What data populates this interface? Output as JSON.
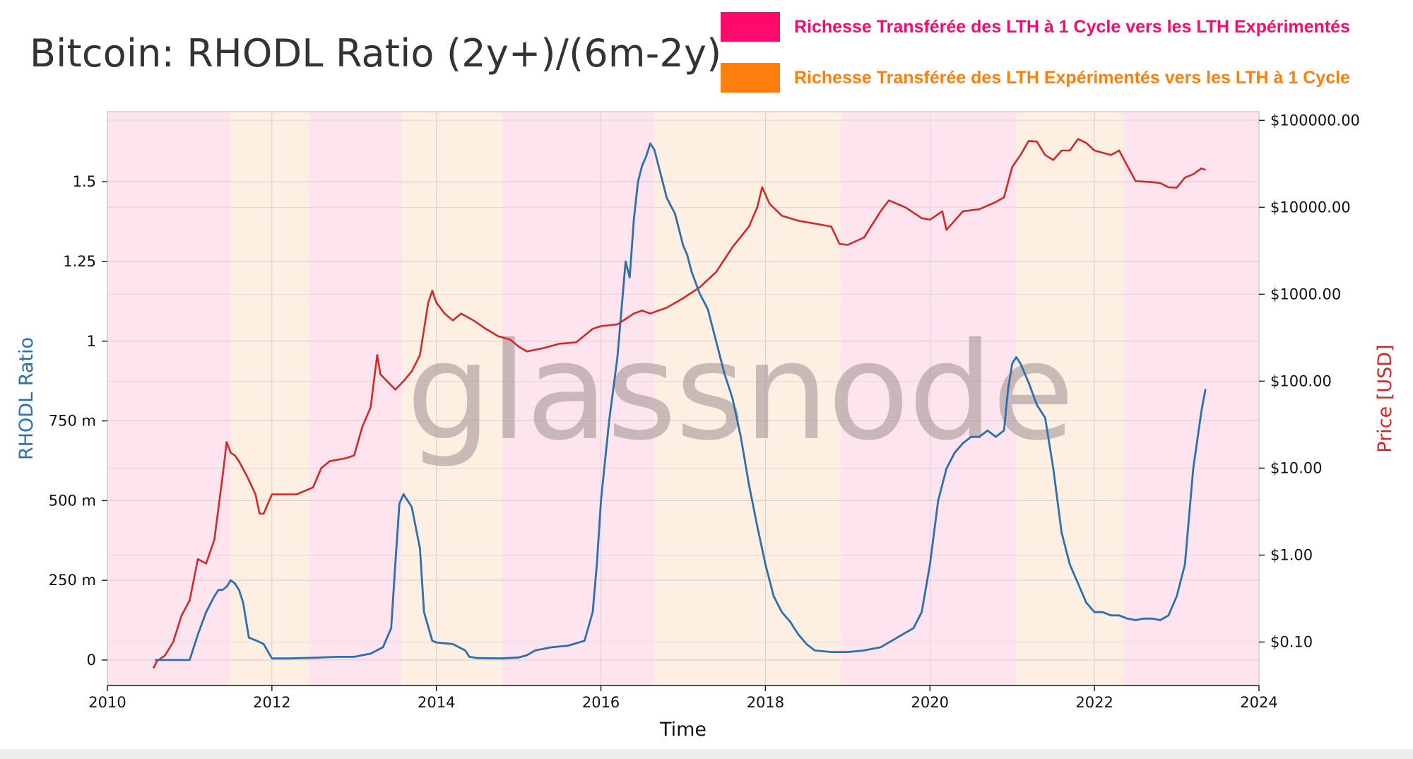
{
  "title": "Bitcoin: RHODL Ratio (2y+)/(6m-2y)",
  "legend": [
    {
      "label": "Richesse Transférée des LTH à 1 Cycle vers les LTH Expérimentés",
      "color": "#ff0a6c"
    },
    {
      "label": "Richesse Transférée des LTH Expérimentés vers les LTH à 1 Cycle",
      "color": "#ff7f0e"
    }
  ],
  "watermark": "glassnode",
  "chart_data": {
    "type": "line",
    "title": "Bitcoin: RHODL Ratio (2y+)/(6m-2y)",
    "xlabel": "Time",
    "ylabel_left": "RHODL Ratio",
    "ylabel_right": "Price [USD]",
    "xlim": [
      2010,
      2024
    ],
    "ylim_left": [
      -0.08,
      1.72
    ],
    "ylim_right_log10": [
      -1.5,
      5.1
    ],
    "y_right_scale": "log",
    "grid": true,
    "x_ticks": [
      "2010",
      "2012",
      "2014",
      "2016",
      "2018",
      "2020",
      "2022",
      "2024"
    ],
    "y_left_ticks": [
      {
        "value": 0,
        "label": "0"
      },
      {
        "value": 0.25,
        "label": "250 m"
      },
      {
        "value": 0.5,
        "label": "500 m"
      },
      {
        "value": 0.75,
        "label": "750 m"
      },
      {
        "value": 1,
        "label": "1"
      },
      {
        "value": 1.25,
        "label": "1.25"
      },
      {
        "value": 1.5,
        "label": "1.5"
      }
    ],
    "y_right_ticks": [
      {
        "value": 0.1,
        "label": "$0.10"
      },
      {
        "value": 1,
        "label": "$1.00"
      },
      {
        "value": 10,
        "label": "$10.00"
      },
      {
        "value": 100,
        "label": "$100.00"
      },
      {
        "value": 1000,
        "label": "$1000.00"
      },
      {
        "value": 10000,
        "label": "$10000.00"
      },
      {
        "value": 100000,
        "label": "$100000.00"
      }
    ],
    "background_bands": [
      {
        "start": 2010.0,
        "end": 2011.5,
        "color": "#fde4ee"
      },
      {
        "start": 2011.5,
        "end": 2012.45,
        "color": "#fdf0e2"
      },
      {
        "start": 2012.45,
        "end": 2013.58,
        "color": "#fde4ee"
      },
      {
        "start": 2013.58,
        "end": 2014.8,
        "color": "#fdf0e2"
      },
      {
        "start": 2014.8,
        "end": 2016.65,
        "color": "#fde4ee"
      },
      {
        "start": 2016.65,
        "end": 2018.92,
        "color": "#fdf0e2"
      },
      {
        "start": 2018.92,
        "end": 2021.05,
        "color": "#fde4ee"
      },
      {
        "start": 2021.05,
        "end": 2022.35,
        "color": "#fdf0e2"
      },
      {
        "start": 2022.35,
        "end": 2024.0,
        "color": "#fde4ee"
      }
    ],
    "series": [
      {
        "name": "RHODL Ratio",
        "axis": "left",
        "color": "#2e6fad",
        "x": [
          2010.58,
          2010.8,
          2011.0,
          2011.1,
          2011.2,
          2011.3,
          2011.35,
          2011.4,
          2011.45,
          2011.5,
          2011.55,
          2011.6,
          2011.65,
          2011.72,
          2011.82,
          2011.9,
          2012.0,
          2012.2,
          2012.5,
          2012.8,
          2013.0,
          2013.2,
          2013.35,
          2013.45,
          2013.5,
          2013.55,
          2013.6,
          2013.7,
          2013.8,
          2013.85,
          2013.95,
          2014.0,
          2014.2,
          2014.35,
          2014.4,
          2014.5,
          2014.8,
          2015.0,
          2015.1,
          2015.2,
          2015.4,
          2015.6,
          2015.8,
          2015.9,
          2015.95,
          2016.0,
          2016.1,
          2016.2,
          2016.25,
          2016.3,
          2016.35,
          2016.4,
          2016.45,
          2016.5,
          2016.55,
          2016.6,
          2016.65,
          2016.7,
          2016.75,
          2016.8,
          2016.9,
          2017.0,
          2017.05,
          2017.1,
          2017.2,
          2017.3,
          2017.4,
          2017.5,
          2017.6,
          2017.7,
          2017.8,
          2017.9,
          2018.0,
          2018.1,
          2018.2,
          2018.3,
          2018.4,
          2018.5,
          2018.6,
          2018.8,
          2019.0,
          2019.2,
          2019.4,
          2019.6,
          2019.8,
          2019.9,
          2020.0,
          2020.1,
          2020.2,
          2020.3,
          2020.4,
          2020.5,
          2020.6,
          2020.7,
          2020.8,
          2020.9,
          2020.95,
          2021.0,
          2021.05,
          2021.1,
          2021.15,
          2021.2,
          2021.3,
          2021.4,
          2021.5,
          2021.6,
          2021.7,
          2021.8,
          2021.9,
          2022.0,
          2022.1,
          2022.2,
          2022.3,
          2022.4,
          2022.5,
          2022.6,
          2022.7,
          2022.8,
          2022.9,
          2023.0,
          2023.1,
          2023.2,
          2023.3,
          2023.35
        ],
        "y": [
          0.0,
          0.0,
          0.0,
          0.08,
          0.15,
          0.2,
          0.22,
          0.22,
          0.23,
          0.25,
          0.24,
          0.22,
          0.18,
          0.07,
          0.06,
          0.05,
          0.005,
          0.005,
          0.007,
          0.01,
          0.01,
          0.02,
          0.04,
          0.1,
          0.3,
          0.49,
          0.52,
          0.48,
          0.35,
          0.15,
          0.06,
          0.055,
          0.05,
          0.03,
          0.01,
          0.006,
          0.005,
          0.008,
          0.015,
          0.03,
          0.04,
          0.045,
          0.06,
          0.15,
          0.3,
          0.5,
          0.75,
          0.95,
          1.1,
          1.25,
          1.2,
          1.38,
          1.5,
          1.55,
          1.58,
          1.62,
          1.6,
          1.55,
          1.5,
          1.45,
          1.4,
          1.3,
          1.27,
          1.22,
          1.15,
          1.1,
          1.0,
          0.9,
          0.82,
          0.7,
          0.55,
          0.42,
          0.3,
          0.2,
          0.15,
          0.12,
          0.08,
          0.05,
          0.03,
          0.025,
          0.025,
          0.03,
          0.04,
          0.07,
          0.1,
          0.15,
          0.3,
          0.5,
          0.6,
          0.65,
          0.68,
          0.7,
          0.7,
          0.72,
          0.7,
          0.72,
          0.85,
          0.93,
          0.95,
          0.93,
          0.9,
          0.87,
          0.8,
          0.76,
          0.6,
          0.4,
          0.3,
          0.24,
          0.18,
          0.15,
          0.15,
          0.14,
          0.14,
          0.13,
          0.125,
          0.13,
          0.13,
          0.125,
          0.14,
          0.2,
          0.3,
          0.6,
          0.78,
          0.85
        ]
      },
      {
        "name": "Price",
        "axis": "right",
        "color": "#d62728",
        "x": [
          2010.56,
          2010.6,
          2010.7,
          2010.8,
          2010.9,
          2011.0,
          2011.1,
          2011.2,
          2011.3,
          2011.4,
          2011.45,
          2011.5,
          2011.55,
          2011.6,
          2011.7,
          2011.8,
          2011.85,
          2011.9,
          2012.0,
          2012.1,
          2012.3,
          2012.5,
          2012.6,
          2012.7,
          2012.9,
          2013.0,
          2013.1,
          2013.2,
          2013.28,
          2013.32,
          2013.4,
          2013.5,
          2013.6,
          2013.7,
          2013.8,
          2013.9,
          2013.95,
          2014.0,
          2014.1,
          2014.2,
          2014.3,
          2014.45,
          2014.6,
          2014.75,
          2014.9,
          2015.0,
          2015.1,
          2015.3,
          2015.5,
          2015.7,
          2015.9,
          2016.0,
          2016.2,
          2016.4,
          2016.5,
          2016.6,
          2016.8,
          2017.0,
          2017.2,
          2017.4,
          2017.5,
          2017.6,
          2017.8,
          2017.9,
          2017.96,
          2018.05,
          2018.2,
          2018.4,
          2018.6,
          2018.8,
          2018.9,
          2019.0,
          2019.2,
          2019.4,
          2019.5,
          2019.7,
          2019.9,
          2020.0,
          2020.15,
          2020.2,
          2020.4,
          2020.6,
          2020.8,
          2020.9,
          2021.0,
          2021.1,
          2021.2,
          2021.3,
          2021.4,
          2021.5,
          2021.6,
          2021.7,
          2021.8,
          2021.9,
          2022.0,
          2022.2,
          2022.3,
          2022.4,
          2022.5,
          2022.7,
          2022.8,
          2022.9,
          2023.0,
          2023.1,
          2023.2,
          2023.3,
          2023.35
        ],
        "y": [
          0.05,
          0.06,
          0.07,
          0.1,
          0.2,
          0.3,
          0.9,
          0.8,
          1.5,
          8,
          20,
          15,
          14,
          12,
          8,
          5,
          3,
          3,
          5,
          5,
          5,
          6,
          10,
          12,
          13,
          14,
          30,
          50,
          200,
          120,
          100,
          80,
          100,
          130,
          200,
          800,
          1100,
          800,
          600,
          500,
          600,
          500,
          400,
          330,
          300,
          250,
          220,
          240,
          270,
          280,
          400,
          430,
          450,
          600,
          650,
          600,
          700,
          900,
          1200,
          1800,
          2500,
          3500,
          6000,
          10000,
          17000,
          11000,
          8000,
          7000,
          6500,
          6000,
          3800,
          3700,
          4500,
          9000,
          12000,
          10000,
          7500,
          7200,
          9000,
          5500,
          9000,
          9500,
          11500,
          13000,
          29000,
          40000,
          58000,
          57000,
          40000,
          35000,
          45000,
          45000,
          61000,
          55000,
          45000,
          40000,
          45000,
          30000,
          20000,
          19500,
          19000,
          17000,
          16800,
          22000,
          24000,
          28000,
          27000
        ]
      }
    ]
  }
}
